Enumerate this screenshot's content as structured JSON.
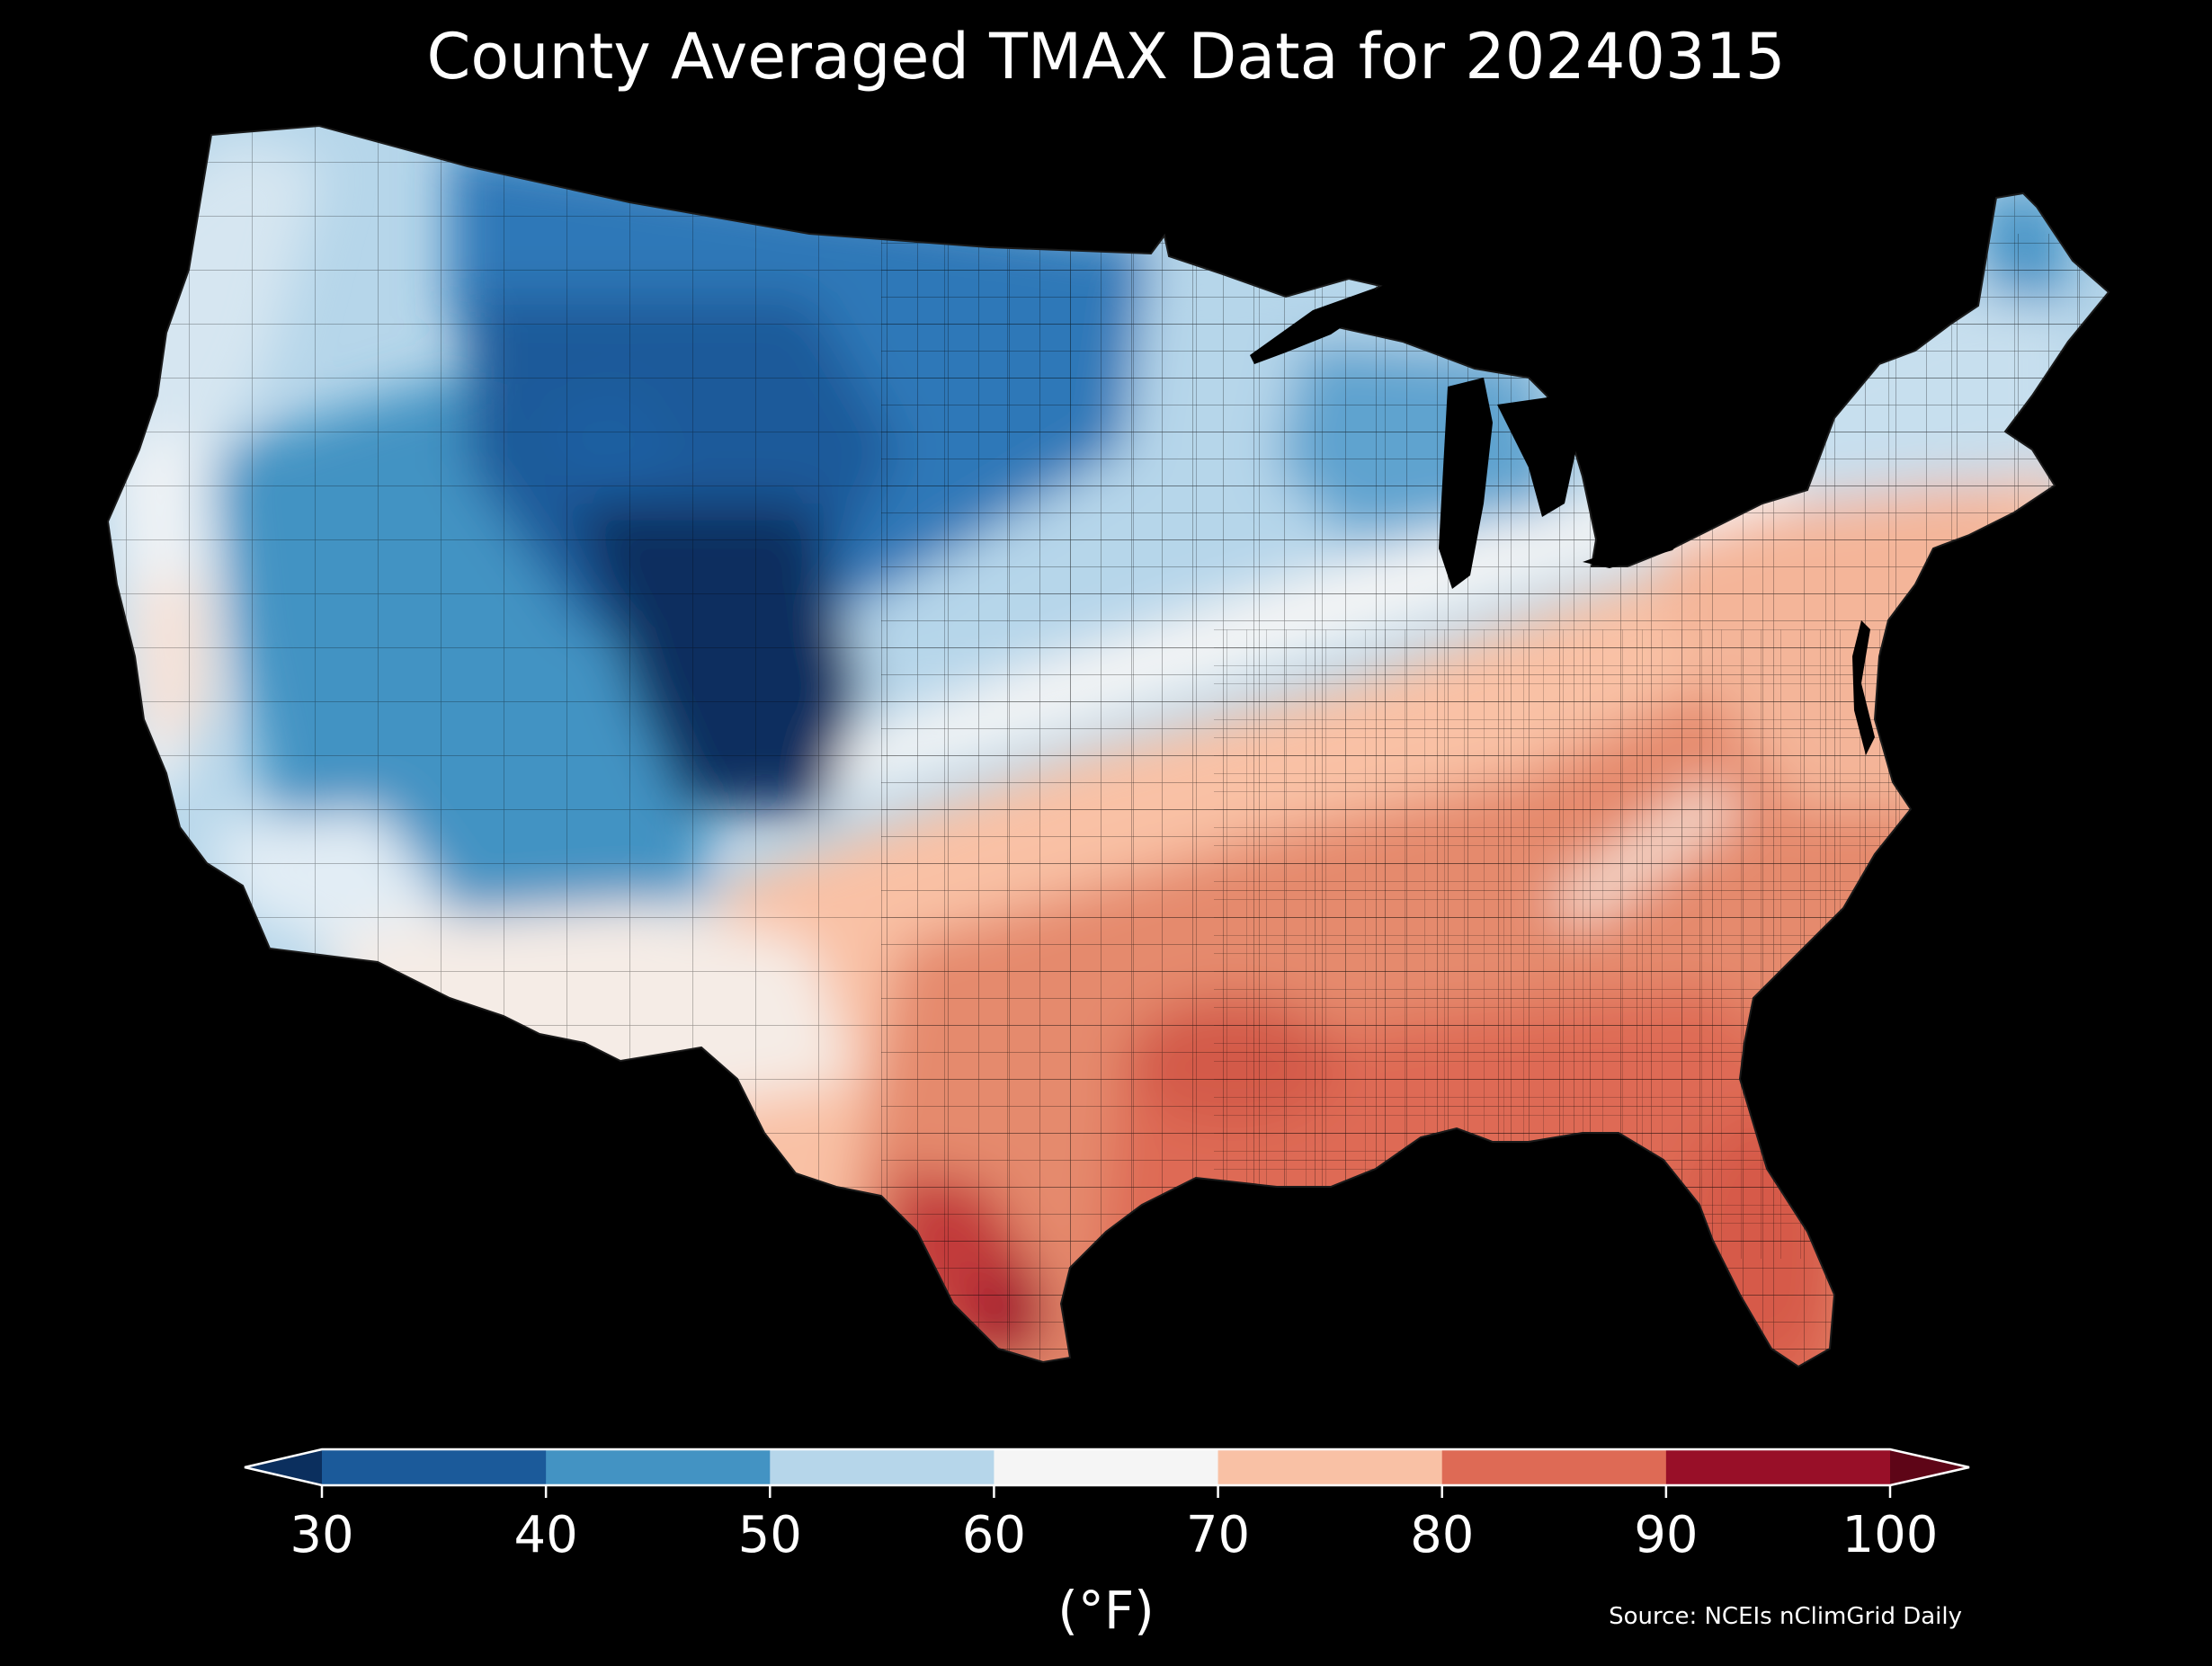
{
  "title": "County Averaged TMAX Data for 20240315",
  "colorbar": {
    "unit_label": "(°F)",
    "ticks": [
      "30",
      "40",
      "50",
      "60",
      "70",
      "80",
      "90",
      "100"
    ],
    "bins": [
      {
        "range": "<30",
        "color": "#0b2f5e"
      },
      {
        "range": "30-40",
        "color": "#1b5a9a"
      },
      {
        "range": "40-50",
        "color": "#4393c3"
      },
      {
        "range": "50-60",
        "color": "#b6d6ea"
      },
      {
        "range": "60-70",
        "color": "#f5f5f5"
      },
      {
        "range": "70-80",
        "color": "#f9c1a5"
      },
      {
        "range": "80-90",
        "color": "#de6a55"
      },
      {
        "range": "90-100",
        "color": "#980f28"
      },
      {
        "range": ">100",
        "color": "#5e0517"
      }
    ]
  },
  "source": "Source: NCEIs nClimGrid Daily",
  "map": {
    "region": "Contiguous United States",
    "variable": "TMAX",
    "regions": [
      {
        "name": "pacific-northwest",
        "level": "50-60"
      },
      {
        "name": "northern-rockies",
        "level": "30-40"
      },
      {
        "name": "colorado-wyoming",
        "level": "<30"
      },
      {
        "name": "great-basin",
        "level": "40-50"
      },
      {
        "name": "northern-plains",
        "level": "30-40"
      },
      {
        "name": "upper-midwest",
        "level": "50-60"
      },
      {
        "name": "great-lakes",
        "level": "40-50"
      },
      {
        "name": "new-england",
        "level": "50-60"
      },
      {
        "name": "maine-north",
        "level": "40-50"
      },
      {
        "name": "mid-atlantic",
        "level": "70-80"
      },
      {
        "name": "ohio-valley",
        "level": "60-70"
      },
      {
        "name": "southeast",
        "level": "80-90"
      },
      {
        "name": "florida",
        "level": "80-90"
      },
      {
        "name": "gulf-coast",
        "level": "80-90"
      },
      {
        "name": "south-texas",
        "level": "90-100"
      },
      {
        "name": "desert-southwest",
        "level": "60-70"
      },
      {
        "name": "california-central",
        "level": "60-70"
      },
      {
        "name": "southern-plains",
        "level": "70-80"
      }
    ]
  }
}
